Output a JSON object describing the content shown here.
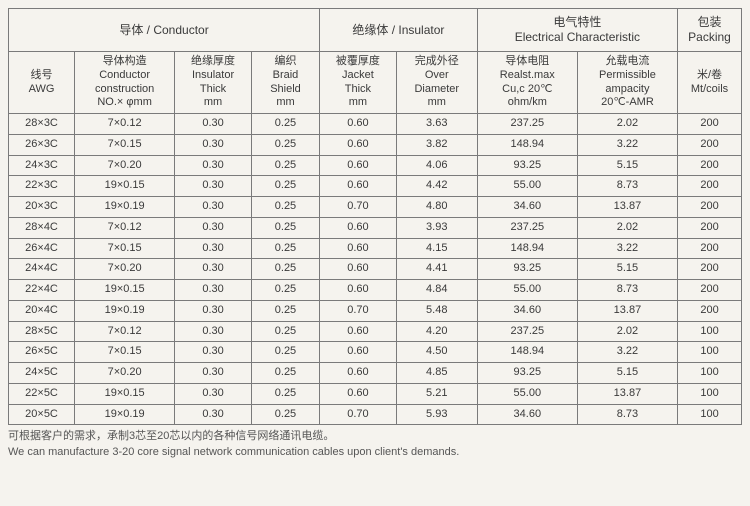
{
  "groups": {
    "conductor": "导体 / Conductor",
    "insulator": "绝缘体 / Insulator",
    "electrical": "电气特性\nElectrical Characteristic",
    "packing": "包装\nPacking"
  },
  "headers": {
    "awg": {
      "cn": "线号",
      "en": "AWG"
    },
    "construction": {
      "cn": "导体构造",
      "en1": "Conductor",
      "en2": "construction",
      "en3": "NO.× φmm"
    },
    "insulator_thick": {
      "cn": "绝缘厚度",
      "en1": "Insulator",
      "en2": "Thick",
      "en3": "mm"
    },
    "braid": {
      "cn": "编织",
      "en1": "Braid",
      "en2": "Shield",
      "en3": "mm"
    },
    "jacket": {
      "cn": "被覆厚度",
      "en1": "Jacket",
      "en2": "Thick",
      "en3": "mm"
    },
    "diameter": {
      "cn": "完成外径",
      "en1": "Over",
      "en2": "Diameter",
      "en3": "mm"
    },
    "resistance": {
      "cn": "导体电阻",
      "en1": "Realst.max",
      "en2": "Cu,c 20℃",
      "en3": "ohm/km"
    },
    "ampacity": {
      "cn": "允载电流",
      "en1": "Permissible",
      "en2": "ampacity",
      "en3": "20℃-AMR"
    },
    "coils": {
      "cn": "米/卷",
      "en": "Mt/coils"
    }
  },
  "rows": [
    {
      "awg": "28×3C",
      "con": "7×0.12",
      "ins": "0.30",
      "braid": "0.25",
      "jacket": "0.60",
      "dia": "3.63",
      "res": "237.25",
      "amp": "2.02",
      "coil": "200"
    },
    {
      "awg": "26×3C",
      "con": "7×0.15",
      "ins": "0.30",
      "braid": "0.25",
      "jacket": "0.60",
      "dia": "3.82",
      "res": "148.94",
      "amp": "3.22",
      "coil": "200"
    },
    {
      "awg": "24×3C",
      "con": "7×0.20",
      "ins": "0.30",
      "braid": "0.25",
      "jacket": "0.60",
      "dia": "4.06",
      "res": "93.25",
      "amp": "5.15",
      "coil": "200"
    },
    {
      "awg": "22×3C",
      "con": "19×0.15",
      "ins": "0.30",
      "braid": "0.25",
      "jacket": "0.60",
      "dia": "4.42",
      "res": "55.00",
      "amp": "8.73",
      "coil": "200"
    },
    {
      "awg": "20×3C",
      "con": "19×0.19",
      "ins": "0.30",
      "braid": "0.25",
      "jacket": "0.70",
      "dia": "4.80",
      "res": "34.60",
      "amp": "13.87",
      "coil": "200"
    },
    {
      "awg": "28×4C",
      "con": "7×0.12",
      "ins": "0.30",
      "braid": "0.25",
      "jacket": "0.60",
      "dia": "3.93",
      "res": "237.25",
      "amp": "2.02",
      "coil": "200"
    },
    {
      "awg": "26×4C",
      "con": "7×0.15",
      "ins": "0.30",
      "braid": "0.25",
      "jacket": "0.60",
      "dia": "4.15",
      "res": "148.94",
      "amp": "3.22",
      "coil": "200"
    },
    {
      "awg": "24×4C",
      "con": "7×0.20",
      "ins": "0.30",
      "braid": "0.25",
      "jacket": "0.60",
      "dia": "4.41",
      "res": "93.25",
      "amp": "5.15",
      "coil": "200"
    },
    {
      "awg": "22×4C",
      "con": "19×0.15",
      "ins": "0.30",
      "braid": "0.25",
      "jacket": "0.60",
      "dia": "4.84",
      "res": "55.00",
      "amp": "8.73",
      "coil": "200"
    },
    {
      "awg": "20×4C",
      "con": "19×0.19",
      "ins": "0.30",
      "braid": "0.25",
      "jacket": "0.70",
      "dia": "5.48",
      "res": "34.60",
      "amp": "13.87",
      "coil": "200"
    },
    {
      "awg": "28×5C",
      "con": "7×0.12",
      "ins": "0.30",
      "braid": "0.25",
      "jacket": "0.60",
      "dia": "4.20",
      "res": "237.25",
      "amp": "2.02",
      "coil": "100"
    },
    {
      "awg": "26×5C",
      "con": "7×0.15",
      "ins": "0.30",
      "braid": "0.25",
      "jacket": "0.60",
      "dia": "4.50",
      "res": "148.94",
      "amp": "3.22",
      "coil": "100"
    },
    {
      "awg": "24×5C",
      "con": "7×0.20",
      "ins": "0.30",
      "braid": "0.25",
      "jacket": "0.60",
      "dia": "4.85",
      "res": "93.25",
      "amp": "5.15",
      "coil": "100"
    },
    {
      "awg": "22×5C",
      "con": "19×0.15",
      "ins": "0.30",
      "braid": "0.25",
      "jacket": "0.60",
      "dia": "5.21",
      "res": "55.00",
      "amp": "13.87",
      "coil": "100"
    },
    {
      "awg": "20×5C",
      "con": "19×0.19",
      "ins": "0.30",
      "braid": "0.25",
      "jacket": "0.70",
      "dia": "5.93",
      "res": "34.60",
      "amp": "8.73",
      "coil": "100"
    }
  ],
  "footnote": {
    "cn": "可根据客户的需求，承制3芯至20芯以内的各种信号网络通讯电缆。",
    "en": "We can manufacture 3-20 core signal network communication cables upon client's demands."
  },
  "colWidths": [
    "62",
    "94",
    "72",
    "64",
    "72",
    "76",
    "94",
    "94",
    "60"
  ],
  "style": {
    "bg": "#f5f3ee",
    "border": "#7a7a7a",
    "text": "#3a3a3a"
  }
}
